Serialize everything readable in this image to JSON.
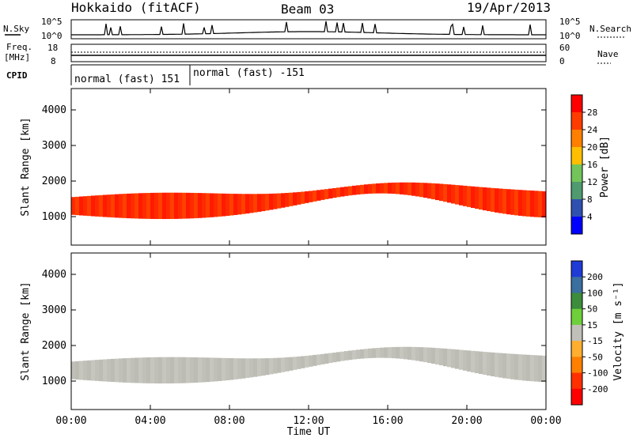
{
  "header": {
    "station": "Hokkaido (fitACF)",
    "beam": "Beam 03",
    "date": "19/Apr/2013"
  },
  "noise_panel": {
    "left_label": "N.Sky",
    "right_label": "N.Search",
    "ticks_left": [
      "10^5",
      "10^0"
    ],
    "ticks_right": [
      "10^5",
      "10^0"
    ]
  },
  "freq_panel": {
    "left_label_1": "Freq.",
    "left_label_2": "[MHz]",
    "right_label": "Nave",
    "ticks_left": [
      "18",
      "8"
    ],
    "ticks_right": [
      "60",
      "0"
    ]
  },
  "cpid": {
    "label": "CPID",
    "segments": [
      {
        "text": "normal (fast) 151",
        "start_hour": 0
      },
      {
        "text": "normal (fast) -151",
        "start_hour": 6
      }
    ]
  },
  "x_axis": {
    "ticks": [
      "00:00",
      "04:00",
      "08:00",
      "12:00",
      "16:00",
      "20:00",
      "00:00"
    ],
    "label": "Time UT"
  },
  "chart_data": [
    {
      "type": "heatmap",
      "name": "power",
      "ylabel": "Slant Range [km]",
      "yticks": [
        "4000",
        "3000",
        "2000",
        "1000"
      ],
      "ylim": [
        200,
        4600
      ],
      "xlim_hours": [
        0,
        24
      ],
      "colorbar": {
        "label": "Power [dB]",
        "ticks": [
          "28",
          "24",
          "20",
          "16",
          "12",
          "8",
          "4"
        ],
        "colors": [
          "#ff0000",
          "#ff3c00",
          "#ff7f00",
          "#ffbf00",
          "#73c45a",
          "#4f9a6e",
          "#3050b0",
          "#0000ff"
        ]
      }
    },
    {
      "type": "heatmap",
      "name": "velocity",
      "ylabel": "Slant Range [km]",
      "yticks": [
        "4000",
        "3000",
        "2000",
        "1000"
      ],
      "ylim": [
        200,
        4600
      ],
      "xlim_hours": [
        0,
        24
      ],
      "colorbar": {
        "label": "Velocity [m s⁻¹]",
        "ticks": [
          "200",
          "100",
          "50",
          "15",
          "-15",
          "-50",
          "-100",
          "-200"
        ],
        "colors": [
          "#1f3bd6",
          "#3a6fa0",
          "#3c8c3c",
          "#6ecf3a",
          "#c0c0b8",
          "#ffae30",
          "#ff7f00",
          "#ff3000",
          "#ff0000"
        ]
      }
    }
  ]
}
